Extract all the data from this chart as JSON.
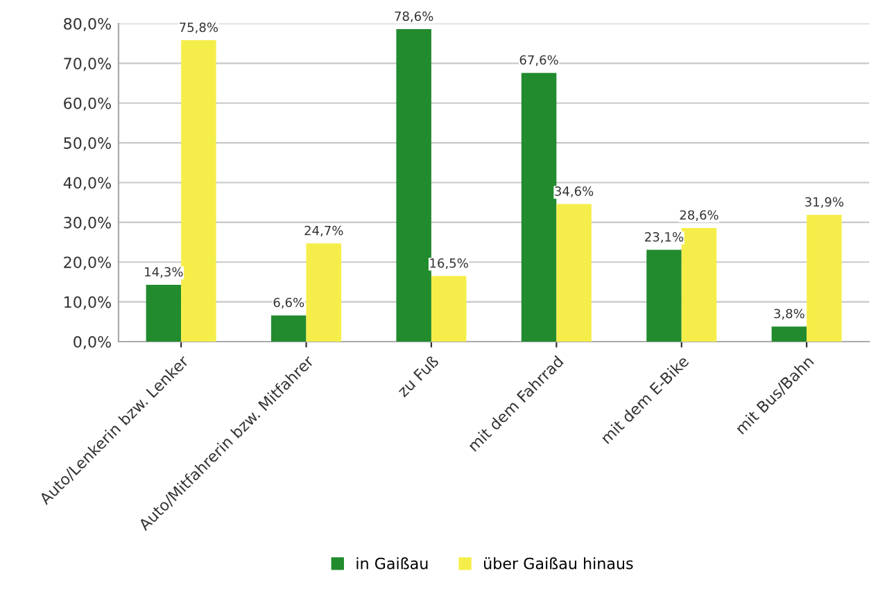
{
  "chart_data": {
    "type": "bar",
    "categories": [
      "Auto/Lenkerin bzw. Lenker",
      "Auto/Mitfahrerin bzw. Mitfahrer",
      "zu Fuß",
      "mit dem Fahrrad",
      "mit dem E-Bike",
      "mit Bus/Bahn"
    ],
    "series": [
      {
        "name": "in Gaißau",
        "color": "#228b2e",
        "values": [
          14.3,
          6.6,
          78.6,
          67.6,
          23.1,
          3.8
        ],
        "value_labels": [
          "14,3%",
          "6,6%",
          "78,6%",
          "67,6%",
          "23,1%",
          "3,8%"
        ]
      },
      {
        "name": "über Gaißau hinaus",
        "color": "#f5ee4a",
        "values": [
          75.8,
          24.7,
          16.5,
          34.6,
          28.6,
          31.9
        ],
        "value_labels": [
          "75,8%",
          "24,7%",
          "16,5%",
          "34,6%",
          "28,6%",
          "31,9%"
        ]
      }
    ],
    "ylim": [
      0,
      80
    ],
    "yticks": [
      {
        "value": 0,
        "label": "0,0%"
      },
      {
        "value": 10,
        "label": "10,0%"
      },
      {
        "value": 20,
        "label": "20,0%"
      },
      {
        "value": 30,
        "label": "30,0%"
      },
      {
        "value": 40,
        "label": "40,0%"
      },
      {
        "value": 50,
        "label": "50,0%"
      },
      {
        "value": 60,
        "label": "60,0%"
      },
      {
        "value": 70,
        "label": "70,0%"
      },
      {
        "value": 80,
        "label": "80,0%"
      }
    ],
    "grid": "y",
    "legend": "bottom"
  }
}
